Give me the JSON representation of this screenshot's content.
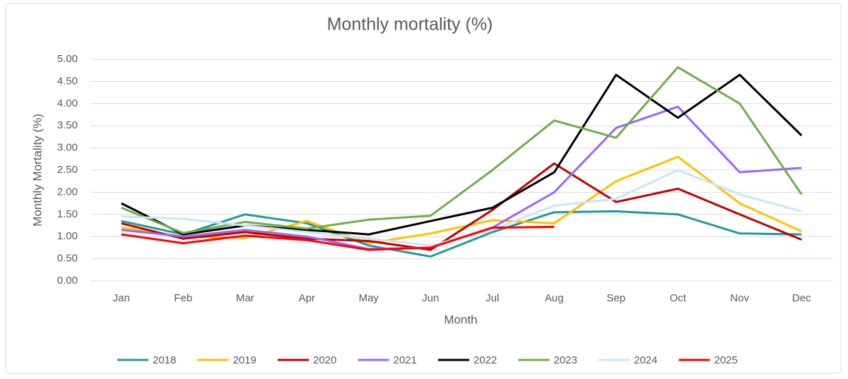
{
  "chart_data": {
    "type": "line",
    "title": "Monthly mortality (%)",
    "x_label": "Month",
    "y_label": "Monthly Mortality (%)",
    "categories": [
      "Jan",
      "Feb",
      "Mar",
      "Apr",
      "May",
      "Jun",
      "Jul",
      "Aug",
      "Sep",
      "Oct",
      "Nov",
      "Dec"
    ],
    "series": [
      {
        "name": "2018",
        "color": "#1f9b9b",
        "values": [
          1.35,
          1.05,
          1.5,
          1.3,
          0.8,
          0.55,
          1.1,
          1.55,
          1.57,
          1.5,
          1.07,
          1.05
        ]
      },
      {
        "name": "2019",
        "color": "#ffc000",
        "values": [
          1.2,
          1.0,
          0.97,
          1.35,
          0.85,
          1.07,
          1.37,
          1.3,
          2.25,
          2.8,
          1.75,
          1.12
        ]
      },
      {
        "name": "2020",
        "color": "#c00000",
        "values": [
          1.3,
          0.95,
          1.1,
          0.95,
          0.9,
          0.7,
          1.6,
          2.65,
          1.78,
          2.08,
          1.5,
          0.93
        ]
      },
      {
        "name": "2021",
        "color": "#9966ff",
        "values": [
          1.15,
          1.0,
          1.15,
          1.0,
          0.72,
          0.75,
          1.2,
          2.0,
          3.45,
          3.93,
          2.45,
          2.55
        ]
      },
      {
        "name": "2022",
        "color": "#000000",
        "values": [
          1.75,
          1.05,
          1.25,
          1.15,
          1.05,
          1.35,
          1.65,
          2.45,
          4.65,
          3.68,
          4.65,
          3.28
        ]
      },
      {
        "name": "2023",
        "color": "#70ad47",
        "values": [
          1.65,
          1.08,
          1.33,
          1.18,
          1.38,
          1.47,
          2.5,
          3.62,
          3.23,
          4.82,
          4.0,
          1.95
        ]
      },
      {
        "name": "2024",
        "color": "#c8e6f8",
        "values": [
          1.45,
          1.4,
          1.25,
          1.1,
          0.95,
          0.8,
          1.15,
          1.7,
          1.85,
          2.5,
          1.95,
          1.57
        ]
      },
      {
        "name": "2025",
        "color": "#ff0000",
        "values": [
          1.05,
          0.85,
          1.02,
          0.92,
          0.7,
          0.75,
          1.2,
          1.22,
          null,
          null,
          null,
          null
        ]
      }
    ],
    "ylim": [
      0,
      5
    ],
    "yticks": [
      {
        "value": 0,
        "label": "0.00"
      },
      {
        "value": 0.5,
        "label": "0.50"
      },
      {
        "value": 1,
        "label": "1.00"
      },
      {
        "value": 1.5,
        "label": "1.50"
      },
      {
        "value": 2,
        "label": "2.00"
      },
      {
        "value": 2.5,
        "label": "2.50"
      },
      {
        "value": 3,
        "label": "3.00"
      },
      {
        "value": 3.5,
        "label": "3.50"
      },
      {
        "value": 4,
        "label": "4.00"
      },
      {
        "value": 4.5,
        "label": "4.50"
      },
      {
        "value": 5,
        "label": "5.00"
      }
    ],
    "grid": true,
    "legend": "bottom"
  }
}
